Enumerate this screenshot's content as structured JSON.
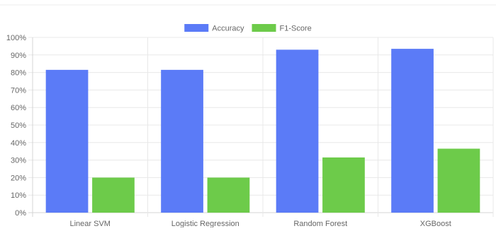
{
  "chart_data": {
    "type": "bar",
    "categories": [
      "Linear SVM",
      "Logistic Regression",
      "Random Forest",
      "XGBoost"
    ],
    "series": [
      {
        "name": "Accuracy",
        "color": "#5B7BF7",
        "values": [
          81.5,
          81.5,
          93.0,
          93.5
        ]
      },
      {
        "name": "F1-Score",
        "color": "#6DCB4A",
        "values": [
          20.0,
          20.0,
          31.5,
          36.5
        ]
      }
    ],
    "ylim": [
      0,
      100
    ],
    "yticks": [
      "0%",
      "10%",
      "20%",
      "30%",
      "40%",
      "50%",
      "60%",
      "70%",
      "80%",
      "90%",
      "100%"
    ],
    "grid": true,
    "legend_position": "top-center"
  }
}
